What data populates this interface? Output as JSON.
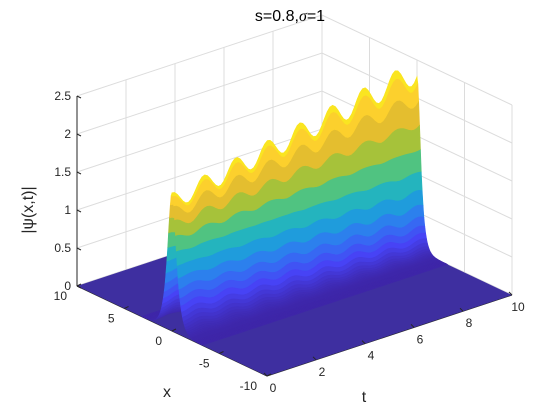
{
  "chart_data": {
    "type": "surface",
    "title_main": "s=0.8,",
    "title_sigma": "σ",
    "title_tail": "=1",
    "xlabel": "t",
    "ylabel": "x",
    "zlabel": "|ψ(x,t)|",
    "t_ticks": [
      "0",
      "2",
      "4",
      "6",
      "8",
      "10"
    ],
    "x_ticks": [
      "10",
      "5",
      "0",
      "-5",
      "-10"
    ],
    "z_ticks": [
      "0",
      "0.5",
      "1",
      "1.5",
      "2",
      "2.5"
    ],
    "t_range": [
      0,
      10
    ],
    "x_range": [
      -10,
      10
    ],
    "z_range": [
      0,
      2.5
    ],
    "peak_amplitude_start": 1.7,
    "peak_amplitude_end": 2.35,
    "oscillation_count": 8,
    "grid": true,
    "colormap": [
      "#3e26a8",
      "#4743f5",
      "#2f79f2",
      "#1aa7d5",
      "#2ec2a5",
      "#8fc63f",
      "#dcb92f",
      "#fcce2e",
      "#f9fb15"
    ]
  }
}
